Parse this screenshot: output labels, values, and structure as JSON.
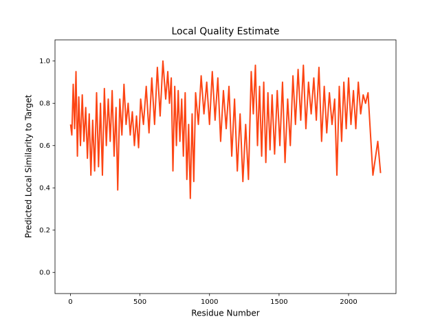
{
  "chart_data": {
    "type": "line",
    "title": "Local Quality Estimate",
    "xlabel": "Residue Number",
    "ylabel": "Predicted Local Similarity to Target",
    "x": [
      1,
      10,
      20,
      30,
      40,
      50,
      60,
      72,
      85,
      97,
      110,
      122,
      135,
      147,
      160,
      174,
      188,
      202,
      216,
      230,
      244,
      258,
      272,
      286,
      300,
      314,
      328,
      340,
      355,
      370,
      385,
      400,
      415,
      430,
      445,
      460,
      475,
      490,
      505,
      525,
      545,
      565,
      585,
      605,
      625,
      645,
      665,
      685,
      700,
      712,
      725,
      737,
      750,
      762,
      775,
      787,
      800,
      812,
      825,
      837,
      850,
      862,
      875,
      887,
      900,
      920,
      940,
      960,
      980,
      1000,
      1020,
      1040,
      1060,
      1080,
      1100,
      1120,
      1140,
      1160,
      1180,
      1200,
      1220,
      1240,
      1260,
      1280,
      1300,
      1315,
      1330,
      1345,
      1360,
      1375,
      1390,
      1405,
      1420,
      1435,
      1450,
      1468,
      1487,
      1506,
      1525,
      1543,
      1562,
      1581,
      1600,
      1618,
      1637,
      1656,
      1675,
      1693,
      1712,
      1731,
      1750,
      1768,
      1787,
      1806,
      1825,
      1843,
      1862,
      1881,
      1900,
      1916,
      1933,
      1950,
      1966,
      1983,
      2000,
      2017,
      2035,
      2052,
      2070,
      2087,
      2105,
      2122,
      2140,
      2157,
      2175,
      2210,
      2230
    ],
    "series": [
      {
        "color": "#fc4514",
        "values": [
          0.7,
          0.65,
          0.89,
          0.68,
          0.95,
          0.55,
          0.83,
          0.6,
          0.84,
          0.62,
          0.78,
          0.54,
          0.75,
          0.46,
          0.72,
          0.48,
          0.85,
          0.5,
          0.8,
          0.46,
          0.87,
          0.6,
          0.82,
          0.62,
          0.86,
          0.55,
          0.78,
          0.39,
          0.82,
          0.65,
          0.89,
          0.7,
          0.8,
          0.65,
          0.76,
          0.6,
          0.74,
          0.59,
          0.82,
          0.7,
          0.88,
          0.66,
          0.92,
          0.7,
          0.97,
          0.74,
          1.0,
          0.82,
          0.95,
          0.8,
          0.92,
          0.48,
          0.88,
          0.6,
          0.86,
          0.62,
          0.82,
          0.55,
          0.85,
          0.44,
          0.7,
          0.35,
          0.75,
          0.43,
          0.85,
          0.7,
          0.93,
          0.75,
          0.9,
          0.7,
          0.95,
          0.72,
          0.92,
          0.62,
          0.86,
          0.68,
          0.88,
          0.55,
          0.82,
          0.48,
          0.75,
          0.43,
          0.7,
          0.44,
          0.95,
          0.75,
          0.98,
          0.6,
          0.88,
          0.55,
          0.9,
          0.52,
          0.85,
          0.58,
          0.84,
          0.56,
          0.86,
          0.6,
          0.9,
          0.52,
          0.82,
          0.6,
          0.93,
          0.7,
          0.96,
          0.72,
          0.98,
          0.68,
          0.9,
          0.75,
          0.92,
          0.72,
          0.97,
          0.62,
          0.88,
          0.66,
          0.85,
          0.7,
          0.82,
          0.46,
          0.88,
          0.62,
          0.9,
          0.68,
          0.92,
          0.7,
          0.86,
          0.68,
          0.9,
          0.75,
          0.84,
          0.8,
          0.85,
          0.66,
          0.46,
          0.62,
          0.47
        ]
      }
    ],
    "xlim": [
      -111,
      2341
    ],
    "ylim": [
      -0.1,
      1.1
    ],
    "xticks": [
      0,
      500,
      1000,
      1500,
      2000
    ],
    "yticks": [
      {
        "value": 0,
        "label": "0.0"
      },
      0.2,
      0.4,
      0.6,
      0.8,
      {
        "value": 1,
        "label": "1.0"
      }
    ]
  }
}
